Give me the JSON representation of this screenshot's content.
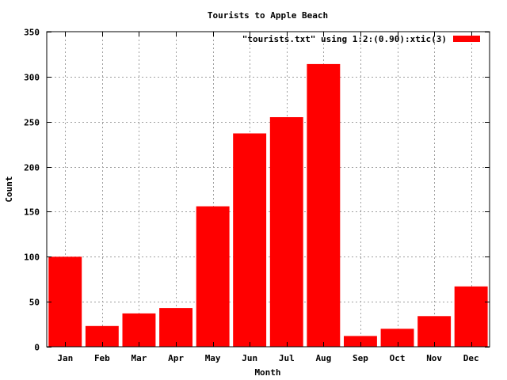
{
  "chart_data": {
    "type": "bar",
    "title": "Tourists to Apple Beach",
    "xlabel": "Month",
    "ylabel": "Count",
    "categories": [
      "Jan",
      "Feb",
      "Mar",
      "Apr",
      "May",
      "Jun",
      "Jul",
      "Aug",
      "Sep",
      "Oct",
      "Nov",
      "Dec"
    ],
    "series": [
      {
        "name": "\"tourists.txt\" using 1:2:(0.90):xtic(3)",
        "values": [
          100,
          23,
          37,
          43,
          156,
          237,
          255,
          314,
          12,
          20,
          34,
          67
        ],
        "color": "#ff0000"
      }
    ],
    "ylim": [
      0,
      350
    ],
    "yticks": [
      0,
      50,
      100,
      150,
      200,
      250,
      300,
      350
    ],
    "ytick_labels": [
      "0",
      "50",
      "100",
      "150",
      "200",
      "250",
      "300",
      "350"
    ],
    "grid": true,
    "legend_position": "top-right",
    "bar_width_fraction": 0.9
  }
}
